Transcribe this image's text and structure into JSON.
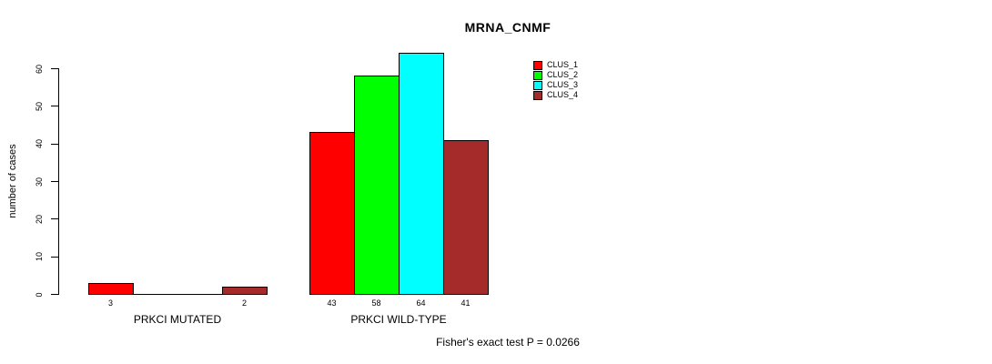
{
  "chart_data": {
    "type": "bar",
    "title": "MRNA_CNMF",
    "ylabel": "number of cases",
    "xlabel": "",
    "ylim": [
      0,
      60
    ],
    "yticks": [
      0,
      10,
      20,
      30,
      40,
      50,
      60
    ],
    "categories": [
      "PRKCI MUTATED",
      "PRKCI WILD-TYPE"
    ],
    "series": [
      {
        "name": "CLUS_1",
        "color": "#FF0000",
        "values": [
          3,
          43
        ]
      },
      {
        "name": "CLUS_2",
        "color": "#00FF00",
        "values": [
          0,
          58
        ]
      },
      {
        "name": "CLUS_3",
        "color": "#00FFFF",
        "values": [
          0,
          64
        ]
      },
      {
        "name": "CLUS_4",
        "color": "#A52A2A",
        "values": [
          2,
          41
        ]
      }
    ],
    "bar_value_labels": {
      "PRKCI MUTATED": [
        3,
        null,
        null,
        2
      ],
      "PRKCI WILD-TYPE": [
        43,
        58,
        64,
        41
      ]
    },
    "legend_position": "top-right",
    "grid": false,
    "annotation": "Fisher's exact test P = 0.0266"
  }
}
